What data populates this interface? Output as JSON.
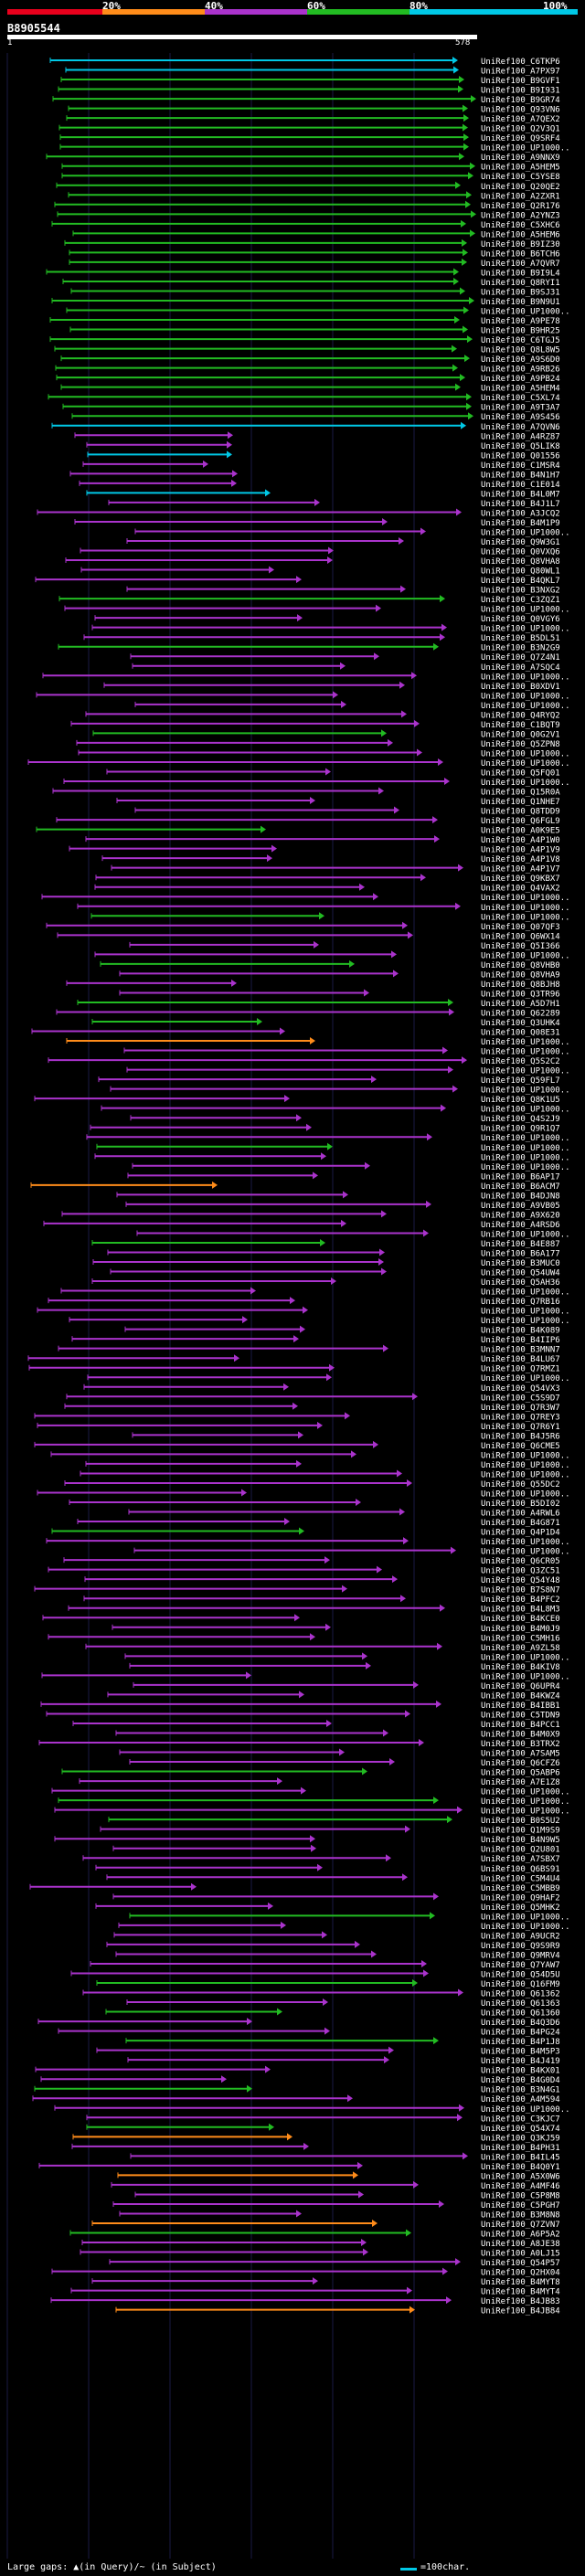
{
  "legend": {
    "labels": [
      "20%",
      "40%",
      "60%",
      "80%",
      "100%"
    ],
    "colors": [
      "#e8001c",
      "#ff8c1a",
      "#aa33cc",
      "#22bb22",
      "#00c8e6"
    ]
  },
  "query": {
    "id": "B8905544",
    "start": "1",
    "end": "578"
  },
  "hits": [
    "UniRef100_C6TKP6",
    "UniRef100_A7PX97",
    "UniRef100_B9GVF1",
    "UniRef100_B9I931",
    "UniRef100_B9GR74",
    "UniRef100_Q93VN6",
    "UniRef100_A7QEX2",
    "UniRef100_Q2V3Q1",
    "UniRef100_Q9SRF4",
    "UniRef100_UP1000..",
    "UniRef100_A9NNX9",
    "UniRef100_A5HEM5",
    "UniRef100_C5YSE8",
    "UniRef100_Q20QE2",
    "UniRef100_A2ZXR1",
    "UniRef100_Q2R176",
    "UniRef100_A2YNZ3",
    "UniRef100_C5XHC6",
    "UniRef100_A5HEM6",
    "UniRef100_B9IZ30",
    "UniRef100_B6TCH6",
    "UniRef100_A7QVR7",
    "UniRef100_B9I9L4",
    "UniRef100_Q8RYI1",
    "UniRef100_B9SJ31",
    "UniRef100_B9N9U1",
    "UniRef100_UP1000..",
    "UniRef100_A9PE78",
    "UniRef100_B9HR25",
    "UniRef100_C6TGJ5",
    "UniRef100_Q8L8W5",
    "UniRef100_A9S6D0",
    "UniRef100_A9RB26",
    "UniRef100_A9PB24",
    "UniRef100_A5HEM4",
    "UniRef100_C5XL74",
    "UniRef100_A9T3A7",
    "UniRef100_A9S456",
    "UniRef100_A7QVN6",
    "UniRef100_A4RZ87",
    "UniRef100_Q5LIK8",
    "UniRef100_Q01556",
    "UniRef100_C1MSR4",
    "UniRef100_B4N1H7",
    "UniRef100_C1E014",
    "UniRef100_B4L0M7",
    "UniRef100_B4J1L7",
    "UniRef100_A3JCQ2",
    "UniRef100_B4M1P9",
    "UniRef100_UP1000..",
    "UniRef100_Q9W3G1",
    "UniRef100_Q0VXQ6",
    "UniRef100_Q8VHA8",
    "UniRef100_Q80WL1",
    "UniRef100_B4QKL7",
    "UniRef100_B3NXG2",
    "UniRef100_C3ZQZ1",
    "UniRef100_UP1000..",
    "UniRef100_Q0VGY6",
    "UniRef100_UP1000..",
    "UniRef100_B5DL51",
    "UniRef100_B3N2G9",
    "UniRef100_Q7Z4N1",
    "UniRef100_A7SQC4",
    "UniRef100_UP1000..",
    "UniRef100_B0XDV1",
    "UniRef100_UP1000..",
    "UniRef100_UP1000..",
    "UniRef100_Q4RYQ2",
    "UniRef100_C1BQT9",
    "UniRef100_Q0G2V1",
    "UniRef100_Q5ZPN8",
    "UniRef100_UP1000..",
    "UniRef100_UP1000..",
    "UniRef100_Q5FQ01",
    "UniRef100_UP1000..",
    "UniRef100_Q15R0A",
    "UniRef100_Q1NHE7",
    "UniRef100_Q8TDD9",
    "UniRef100_Q6FGL9",
    "UniRef100_A0K9E5",
    "UniRef100_A4P1W0",
    "UniRef100_A4P1V9",
    "UniRef100_A4P1V8",
    "UniRef100_A4P1V7",
    "UniRef100_Q9KBX7",
    "UniRef100_Q4VAX2",
    "UniRef100_UP1000..",
    "UniRef100_UP1000..",
    "UniRef100_UP1000..",
    "UniRef100_Q07QF3",
    "UniRef100_Q6WX14",
    "UniRef100_Q5I366",
    "UniRef100_UP1000..",
    "UniRef100_Q8VHB0",
    "UniRef100_Q8VHA9",
    "UniRef100_Q8BJH8",
    "UniRef100_Q3TR96",
    "UniRef100_A5D7H1",
    "UniRef100_Q62289",
    "UniRef100_Q3UHK4",
    "UniRef100_Q08E31",
    "UniRef100_UP1000..",
    "UniRef100_UP1000..",
    "UniRef100_Q5S2C2",
    "UniRef100_UP1000..",
    "UniRef100_Q59FL7",
    "UniRef100_UP1000..",
    "UniRef100_Q8K1U5",
    "UniRef100_UP1000..",
    "UniRef100_Q4S2J9",
    "UniRef100_Q9R1Q7",
    "UniRef100_UP1000..",
    "UniRef100_UP1000..",
    "UniRef100_UP1000..",
    "UniRef100_UP1000..",
    "UniRef100_B6AP17",
    "UniRef100_B6ACM7",
    "UniRef100_B4DJN8",
    "UniRef100_A9VB05",
    "UniRef100_A9X620",
    "UniRef100_A4RSD6",
    "UniRef100_UP1000..",
    "UniRef100_B4E887",
    "UniRef100_B6A177",
    "UniRef100_B3MUC0",
    "UniRef100_Q54UW4",
    "UniRef100_Q5AH36",
    "UniRef100_UP1000..",
    "UniRef100_Q7RB16",
    "UniRef100_UP1000..",
    "UniRef100_UP1000..",
    "UniRef100_B4K089",
    "UniRef100_B4IIP6",
    "UniRef100_B3MNN7",
    "UniRef100_B4LU67",
    "UniRef100_Q7RMZ1",
    "UniRef100_UP1000..",
    "UniRef100_Q54VX3",
    "UniRef100_C5S9D7",
    "UniRef100_Q7R3W7",
    "UniRef100_Q7REY3",
    "UniRef100_Q7R6Y1",
    "UniRef100_B4J5R6",
    "UniRef100_Q6CME5",
    "UniRef100_UP1000..",
    "UniRef100_UP1000..",
    "UniRef100_UP1000..",
    "UniRef100_Q55DC2",
    "UniRef100_UP1000..",
    "UniRef100_B5DI02",
    "UniRef100_A4RWL6",
    "UniRef100_B4G871",
    "UniRef100_Q4P1D4",
    "UniRef100_UP1000..",
    "UniRef100_UP1000..",
    "UniRef100_Q6CR05",
    "UniRef100_Q3ZC51",
    "UniRef100_Q54Y48",
    "UniRef100_B7S8N7",
    "UniRef100_B4PFC2",
    "UniRef100_B4L8M3",
    "UniRef100_B4KCE0",
    "UniRef100_B4M0J9",
    "UniRef100_C5MH16",
    "UniRef100_A9ZL58",
    "UniRef100_UP1000..",
    "UniRef100_B4KIV8",
    "UniRef100_UP1000..",
    "UniRef100_Q6UPR4",
    "UniRef100_B4KWZ4",
    "UniRef100_B4IBB1",
    "UniRef100_C5TDN9",
    "UniRef100_B4PCC1",
    "UniRef100_B4M0X9",
    "UniRef100_B3TRX2",
    "UniRef100_A7SAM5",
    "UniRef100_Q6CFZ6",
    "UniRef100_Q5ABP6",
    "UniRef100_A7E1Z8",
    "UniRef100_UP1000..",
    "UniRef100_UP1000..",
    "UniRef100_UP1000..",
    "UniRef100_B0S5U2",
    "UniRef100_Q1M9S9",
    "UniRef100_B4N9W5",
    "UniRef100_Q2U801",
    "UniRef100_A7SBX7",
    "UniRef100_Q6BS91",
    "UniRef100_C5M4U4",
    "UniRef100_C5MBB9",
    "UniRef100_Q9HAF2",
    "UniRef100_Q5MHK2",
    "UniRef100_UP1000..",
    "UniRef100_UP1000..",
    "UniRef100_A9UCR2",
    "UniRef100_Q9S9R9",
    "UniRef100_Q9MRV4",
    "UniRef100_Q7YAW7",
    "UniRef100_Q54D5U",
    "UniRef100_Q16FM9",
    "UniRef100_Q61362",
    "UniRef100_Q61363",
    "UniRef100_Q61360",
    "UniRef100_B4Q3D6",
    "UniRef100_B4PG24",
    "UniRef100_B4P1J8",
    "UniRef100_B4M5P3",
    "UniRef100_B4J419",
    "UniRef100_B4KX01",
    "UniRef100_B4G0D4",
    "UniRef100_B3N4G1",
    "UniRef100_A4M594",
    "UniRef100_UP1000..",
    "UniRef100_C3KJC7",
    "UniRef100_Q54X74",
    "UniRef100_Q3KJ59",
    "UniRef100_B4PH31",
    "UniRef100_B4IL45",
    "UniRef100_B4Q0Y1",
    "UniRef100_A5X0W6",
    "UniRef100_A4MF46",
    "UniRef100_C5P8M8",
    "UniRef100_C5PGH7",
    "UniRef100_B3M8N8",
    "UniRef100_Q7ZVN7",
    "UniRef100_A6P5A2",
    "UniRef100_A8JE38",
    "UniRef100_A0LJ15",
    "UniRef100_Q54P57",
    "UniRef100_Q2HX04",
    "UniRef100_B4MYT8",
    "UniRef100_B4MYT4",
    "UniRef100_B4JB83",
    "UniRef100_B4JB84"
  ],
  "footer": {
    "gaps_text": "Large gaps: ▲(in Query)/~ (in Subject)",
    "scale_text": "=100char."
  }
}
